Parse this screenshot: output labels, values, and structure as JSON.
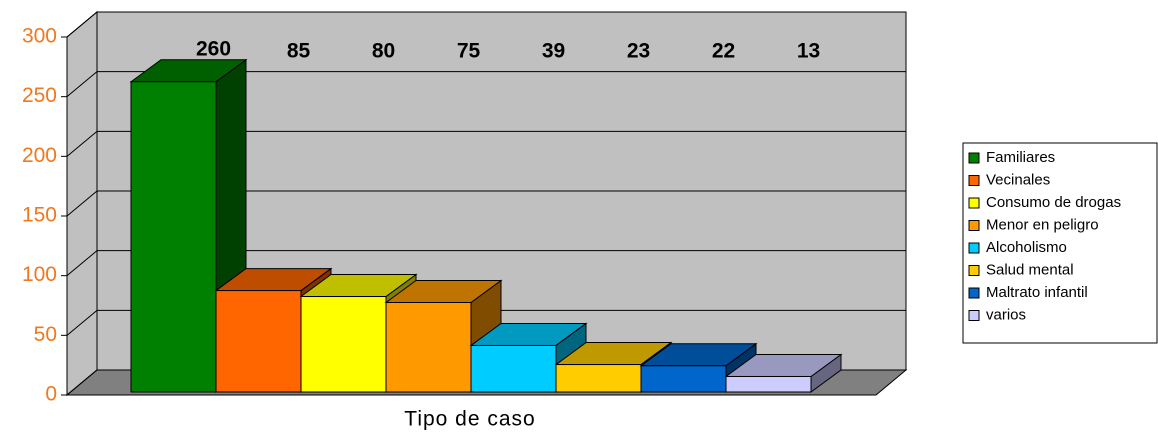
{
  "chart_data": {
    "type": "bar3d",
    "x_label": "Tipo de caso",
    "ylim": [
      0,
      300
    ],
    "yticks": [
      0,
      50,
      100,
      150,
      200,
      250,
      300
    ],
    "grid": true,
    "series": [
      {
        "name": "Familiares",
        "color": "#008000",
        "values": [
          260
        ]
      },
      {
        "name": "Vecinales",
        "color": "#ff6600",
        "values": [
          85
        ]
      },
      {
        "name": "Consumo de drogas",
        "color": "#ffff00",
        "values": [
          80
        ]
      },
      {
        "name": "Menor en peligro",
        "color": "#ff9900",
        "values": [
          75
        ]
      },
      {
        "name": "Alcoholismo",
        "color": "#00ccff",
        "values": [
          39
        ]
      },
      {
        "name": "Salud mental",
        "color": "#ffcc00",
        "values": [
          23
        ]
      },
      {
        "name": "Maltrato infantil",
        "color": "#0066cc",
        "values": [
          22
        ]
      },
      {
        "name": "varios",
        "color": "#ccccff",
        "values": [
          13
        ]
      }
    ]
  }
}
